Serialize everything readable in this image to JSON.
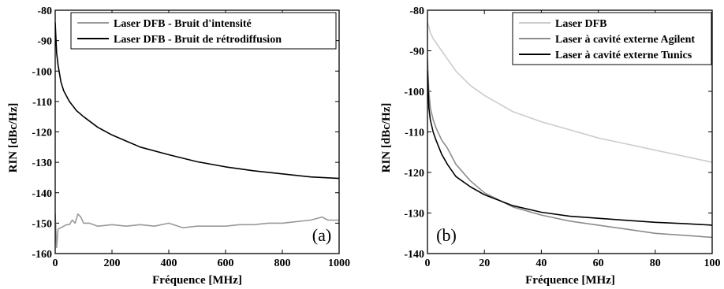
{
  "chart_data": [
    {
      "type": "line",
      "panel": "(a)",
      "xlabel": "Fréquence [MHz]",
      "ylabel": "RIN [dBc/Hz]",
      "xlim": [
        0,
        1000
      ],
      "ylim": [
        -160,
        -80
      ],
      "xticks": [
        0,
        200,
        400,
        600,
        800,
        1000
      ],
      "yticks": [
        -160,
        -150,
        -140,
        -130,
        -120,
        -110,
        -100,
        -90,
        -80
      ],
      "legend_position": "top-left",
      "series": [
        {
          "name": "Laser DFB - Bruit d'intensité",
          "color": "#999999",
          "x": [
            0,
            5,
            10,
            20,
            30,
            40,
            50,
            60,
            70,
            80,
            90,
            100,
            120,
            150,
            200,
            250,
            300,
            350,
            400,
            450,
            500,
            550,
            600,
            650,
            700,
            750,
            800,
            850,
            900,
            940,
            960,
            1000
          ],
          "y": [
            -147,
            -158,
            -152,
            -151.5,
            -151,
            -150.5,
            -150.5,
            -149,
            -150,
            -147,
            -148,
            -150,
            -150,
            -151,
            -150.5,
            -151,
            -150.5,
            -151,
            -150,
            -151.5,
            -151,
            -151,
            -151,
            -150.5,
            -150.5,
            -150,
            -150,
            -149.5,
            -149,
            -148,
            -149,
            -149
          ]
        },
        {
          "name": "Laser DFB - Bruit de rétrodiffusion",
          "color": "#000000",
          "x": [
            0,
            2,
            5,
            10,
            20,
            30,
            50,
            75,
            100,
            150,
            200,
            250,
            300,
            400,
            500,
            600,
            700,
            800,
            900,
            1000
          ],
          "y": [
            -84,
            -88,
            -94,
            -98,
            -103.5,
            -106.5,
            -110,
            -113,
            -115,
            -118.5,
            -121,
            -123,
            -125,
            -127.5,
            -129.8,
            -131.5,
            -132.8,
            -133.8,
            -134.8,
            -135.3
          ]
        }
      ]
    },
    {
      "type": "line",
      "panel": "(b)",
      "xlabel": "Fréquence [MHz]",
      "ylabel": "RIN [dBc/Hz]",
      "xlim": [
        0,
        100
      ],
      "ylim": [
        -140,
        -80
      ],
      "xticks": [
        0,
        20,
        40,
        60,
        80,
        100
      ],
      "yticks": [
        -140,
        -130,
        -120,
        -110,
        -100,
        -90,
        -80
      ],
      "legend_position": "top-right",
      "series": [
        {
          "name": "Laser DFB",
          "color": "#cccccc",
          "x": [
            0,
            0.5,
            1,
            2,
            3,
            5,
            7,
            10,
            15,
            20,
            30,
            40,
            50,
            60,
            70,
            80,
            90,
            100
          ],
          "y": [
            -83,
            -84,
            -85.5,
            -87,
            -88,
            -90,
            -92,
            -95,
            -98.5,
            -101,
            -105,
            -107.5,
            -109.5,
            -111.5,
            -113,
            -114.5,
            -116,
            -117.5
          ]
        },
        {
          "name": "Laser à cavité externe Agilent",
          "color": "#8c8c8c",
          "x": [
            0,
            0.5,
            1,
            2,
            3,
            5,
            7,
            10,
            15,
            20,
            30,
            40,
            50,
            60,
            70,
            80,
            90,
            100
          ],
          "y": [
            -92,
            -100,
            -104,
            -107,
            -109,
            -112,
            -114,
            -118,
            -122,
            -125,
            -128.5,
            -130.5,
            -132,
            -133,
            -134,
            -135,
            -135.5,
            -136
          ]
        },
        {
          "name": "Laser à cavité externe Tunics",
          "color": "#000000",
          "x": [
            0,
            0.5,
            1,
            2,
            3,
            5,
            7,
            10,
            15,
            20,
            30,
            40,
            50,
            60,
            70,
            80,
            90,
            100
          ],
          "y": [
            -95,
            -104,
            -107,
            -110,
            -112,
            -115.5,
            -118,
            -121,
            -123.5,
            -125.5,
            -128.2,
            -129.8,
            -130.8,
            -131.3,
            -131.8,
            -132.3,
            -132.6,
            -133
          ]
        }
      ]
    }
  ]
}
